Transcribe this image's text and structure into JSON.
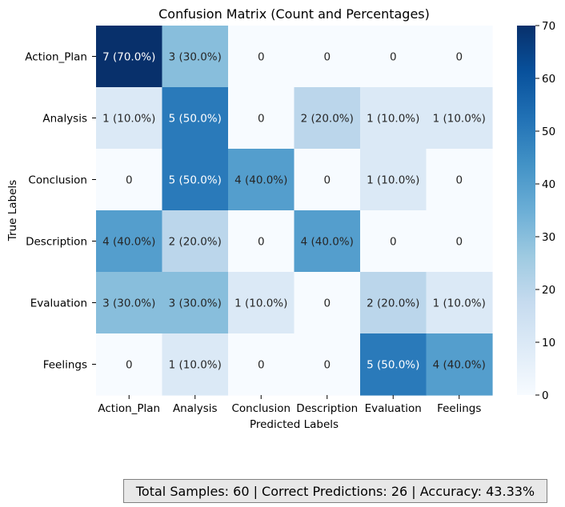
{
  "chart_data": {
    "type": "heatmap",
    "title": "Confusion Matrix (Count and Percentages)",
    "xlabel": "Predicted Labels",
    "ylabel": "True Labels",
    "x_categories": [
      "Action_Plan",
      "Analysis",
      "Conclusion",
      "Description",
      "Evaluation",
      "Feelings"
    ],
    "y_categories": [
      "Action_Plan",
      "Analysis",
      "Conclusion",
      "Description",
      "Evaluation",
      "Feelings"
    ],
    "counts": [
      [
        7,
        3,
        0,
        0,
        0,
        0
      ],
      [
        1,
        5,
        0,
        2,
        1,
        1
      ],
      [
        0,
        5,
        4,
        0,
        1,
        0
      ],
      [
        4,
        2,
        0,
        4,
        0,
        0
      ],
      [
        3,
        3,
        1,
        0,
        2,
        1
      ],
      [
        0,
        1,
        0,
        0,
        5,
        4
      ]
    ],
    "percentages": [
      [
        70.0,
        30.0,
        0,
        0,
        0,
        0
      ],
      [
        10.0,
        50.0,
        0,
        20.0,
        10.0,
        10.0
      ],
      [
        0,
        50.0,
        40.0,
        0,
        10.0,
        0
      ],
      [
        40.0,
        20.0,
        0,
        40.0,
        0,
        0
      ],
      [
        30.0,
        30.0,
        10.0,
        0,
        20.0,
        10.0
      ],
      [
        0,
        10.0,
        0,
        0,
        50.0,
        40.0
      ]
    ],
    "cell_labels": [
      [
        "7 (70.0%)",
        "3 (30.0%)",
        "0",
        "0",
        "0",
        "0"
      ],
      [
        "1 (10.0%)",
        "5 (50.0%)",
        "0",
        "2 (20.0%)",
        "1 (10.0%)",
        "1 (10.0%)"
      ],
      [
        "0",
        "5 (50.0%)",
        "4 (40.0%)",
        "0",
        "1 (10.0%)",
        "0"
      ],
      [
        "4 (40.0%)",
        "2 (20.0%)",
        "0",
        "4 (40.0%)",
        "0",
        "0"
      ],
      [
        "3 (30.0%)",
        "3 (30.0%)",
        "1 (10.0%)",
        "0",
        "2 (20.0%)",
        "1 (10.0%)"
      ],
      [
        "0",
        "1 (10.0%)",
        "0",
        "0",
        "5 (50.0%)",
        "4 (40.0%)"
      ]
    ],
    "colorbar": {
      "range": [
        0,
        70
      ],
      "ticks": [
        0,
        10,
        20,
        30,
        40,
        50,
        60,
        70
      ],
      "colormap": "Blues"
    },
    "grid": false
  },
  "summary": {
    "text": "Total Samples: 60 | Correct Predictions: 26 | Accuracy: 43.33%"
  }
}
